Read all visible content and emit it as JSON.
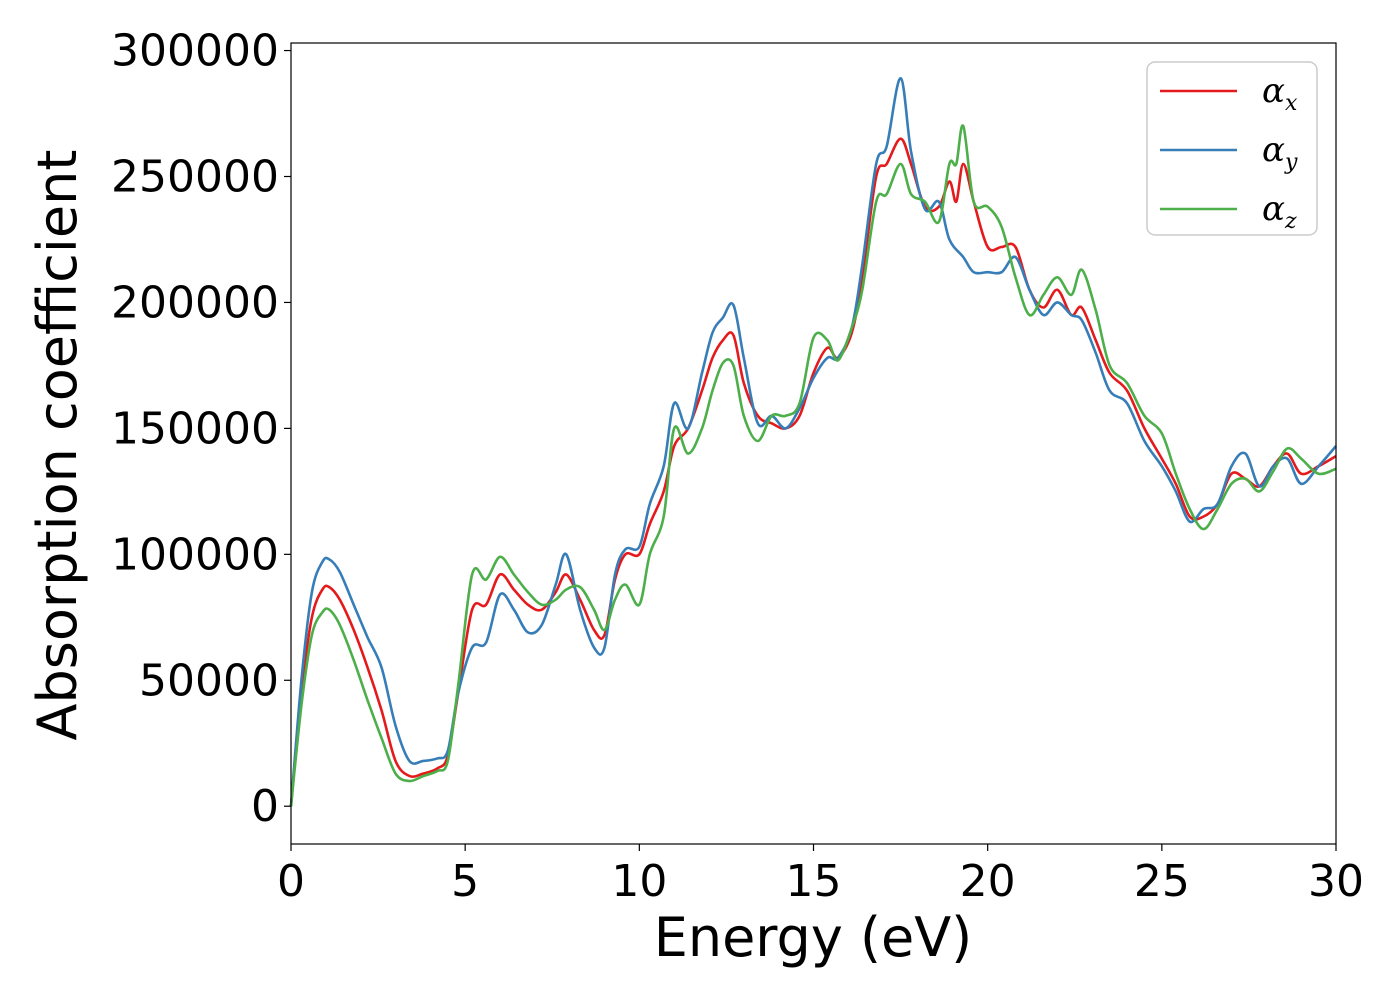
{
  "chart_data": {
    "type": "line",
    "xlabel": "Energy (eV)",
    "ylabel": "Absorption coefficient",
    "xlim": [
      0,
      30
    ],
    "ylim": [
      -15000,
      303000
    ],
    "x_ticks": [
      "0",
      "5",
      "10",
      "15",
      "20",
      "25",
      "30"
    ],
    "y_ticks": [
      "0",
      "50000",
      "100000",
      "150000",
      "200000",
      "250000",
      "300000"
    ],
    "grid": false,
    "legend_position": "top-right",
    "series": [
      {
        "name": "α",
        "subscript": "x",
        "color": "#e41a1c",
        "points": [
          [
            0,
            0
          ],
          [
            0.3,
            45000
          ],
          [
            0.6,
            75000
          ],
          [
            0.9,
            86000
          ],
          [
            1.1,
            87000
          ],
          [
            1.4,
            82000
          ],
          [
            1.8,
            70000
          ],
          [
            2.2,
            55000
          ],
          [
            2.6,
            38000
          ],
          [
            3.0,
            18000
          ],
          [
            3.4,
            12000
          ],
          [
            3.8,
            13000
          ],
          [
            4.2,
            15000
          ],
          [
            4.5,
            20000
          ],
          [
            4.8,
            45000
          ],
          [
            5.2,
            78000
          ],
          [
            5.6,
            80000
          ],
          [
            6.0,
            92000
          ],
          [
            6.4,
            86000
          ],
          [
            6.8,
            80000
          ],
          [
            7.2,
            78000
          ],
          [
            7.6,
            85000
          ],
          [
            7.9,
            92000
          ],
          [
            8.3,
            82000
          ],
          [
            8.7,
            70000
          ],
          [
            9.0,
            68000
          ],
          [
            9.3,
            90000
          ],
          [
            9.6,
            100000
          ],
          [
            10.0,
            100000
          ],
          [
            10.3,
            112000
          ],
          [
            10.7,
            125000
          ],
          [
            11.0,
            143000
          ],
          [
            11.4,
            150000
          ],
          [
            11.8,
            165000
          ],
          [
            12.1,
            178000
          ],
          [
            12.4,
            185000
          ],
          [
            12.7,
            187000
          ],
          [
            13.0,
            168000
          ],
          [
            13.4,
            155000
          ],
          [
            13.8,
            152000
          ],
          [
            14.2,
            150000
          ],
          [
            14.6,
            155000
          ],
          [
            15.0,
            172000
          ],
          [
            15.4,
            182000
          ],
          [
            15.7,
            178000
          ],
          [
            16.1,
            188000
          ],
          [
            16.4,
            210000
          ],
          [
            16.8,
            250000
          ],
          [
            17.1,
            255000
          ],
          [
            17.5,
            265000
          ],
          [
            17.8,
            255000
          ],
          [
            18.2,
            238000
          ],
          [
            18.6,
            238000
          ],
          [
            18.9,
            248000
          ],
          [
            19.1,
            240000
          ],
          [
            19.3,
            255000
          ],
          [
            19.6,
            240000
          ],
          [
            20.0,
            222000
          ],
          [
            20.4,
            222000
          ],
          [
            20.8,
            222000
          ],
          [
            21.2,
            205000
          ],
          [
            21.6,
            198000
          ],
          [
            22.0,
            205000
          ],
          [
            22.4,
            195000
          ],
          [
            22.7,
            198000
          ],
          [
            23.1,
            185000
          ],
          [
            23.5,
            172000
          ],
          [
            24.0,
            165000
          ],
          [
            24.5,
            150000
          ],
          [
            25.0,
            138000
          ],
          [
            25.4,
            128000
          ],
          [
            25.8,
            115000
          ],
          [
            26.2,
            115000
          ],
          [
            26.6,
            120000
          ],
          [
            27.0,
            132000
          ],
          [
            27.4,
            130000
          ],
          [
            27.8,
            127000
          ],
          [
            28.2,
            135000
          ],
          [
            28.6,
            140000
          ],
          [
            29.0,
            132000
          ],
          [
            29.5,
            135000
          ],
          [
            30.0,
            139000
          ]
        ]
      },
      {
        "name": "α",
        "subscript": "y",
        "color": "#377eb8",
        "points": [
          [
            0,
            0
          ],
          [
            0.3,
            50000
          ],
          [
            0.6,
            85000
          ],
          [
            0.9,
            97000
          ],
          [
            1.1,
            98000
          ],
          [
            1.4,
            93000
          ],
          [
            1.8,
            80000
          ],
          [
            2.2,
            67000
          ],
          [
            2.6,
            55000
          ],
          [
            3.0,
            32000
          ],
          [
            3.4,
            18000
          ],
          [
            3.8,
            18000
          ],
          [
            4.2,
            19000
          ],
          [
            4.5,
            22000
          ],
          [
            4.8,
            45000
          ],
          [
            5.2,
            63000
          ],
          [
            5.6,
            65000
          ],
          [
            6.0,
            84000
          ],
          [
            6.4,
            78000
          ],
          [
            6.8,
            69000
          ],
          [
            7.2,
            72000
          ],
          [
            7.6,
            88000
          ],
          [
            7.9,
            100000
          ],
          [
            8.3,
            78000
          ],
          [
            8.7,
            63000
          ],
          [
            9.0,
            63000
          ],
          [
            9.3,
            92000
          ],
          [
            9.6,
            102000
          ],
          [
            10.0,
            103000
          ],
          [
            10.3,
            120000
          ],
          [
            10.7,
            135000
          ],
          [
            11.0,
            160000
          ],
          [
            11.4,
            150000
          ],
          [
            11.8,
            172000
          ],
          [
            12.1,
            188000
          ],
          [
            12.4,
            194000
          ],
          [
            12.7,
            199000
          ],
          [
            13.0,
            178000
          ],
          [
            13.4,
            152000
          ],
          [
            13.8,
            155000
          ],
          [
            14.2,
            150000
          ],
          [
            14.6,
            158000
          ],
          [
            15.0,
            170000
          ],
          [
            15.4,
            178000
          ],
          [
            15.7,
            178000
          ],
          [
            16.1,
            190000
          ],
          [
            16.4,
            215000
          ],
          [
            16.8,
            255000
          ],
          [
            17.1,
            262000
          ],
          [
            17.5,
            289000
          ],
          [
            17.8,
            260000
          ],
          [
            18.2,
            237000
          ],
          [
            18.6,
            240000
          ],
          [
            18.9,
            225000
          ],
          [
            19.3,
            218000
          ],
          [
            19.6,
            212000
          ],
          [
            20.0,
            212000
          ],
          [
            20.4,
            212000
          ],
          [
            20.8,
            218000
          ],
          [
            21.2,
            205000
          ],
          [
            21.6,
            195000
          ],
          [
            22.0,
            200000
          ],
          [
            22.4,
            195000
          ],
          [
            22.7,
            193000
          ],
          [
            23.1,
            180000
          ],
          [
            23.5,
            165000
          ],
          [
            24.0,
            160000
          ],
          [
            24.5,
            145000
          ],
          [
            25.0,
            135000
          ],
          [
            25.4,
            125000
          ],
          [
            25.8,
            113000
          ],
          [
            26.2,
            118000
          ],
          [
            26.6,
            120000
          ],
          [
            27.0,
            135000
          ],
          [
            27.4,
            140000
          ],
          [
            27.8,
            127000
          ],
          [
            28.2,
            135000
          ],
          [
            28.6,
            138000
          ],
          [
            29.0,
            128000
          ],
          [
            29.5,
            135000
          ],
          [
            30.0,
            143000
          ]
        ]
      },
      {
        "name": "α",
        "subscript": "z",
        "color": "#4daf4a",
        "points": [
          [
            0,
            0
          ],
          [
            0.3,
            40000
          ],
          [
            0.6,
            68000
          ],
          [
            0.9,
            77000
          ],
          [
            1.1,
            78000
          ],
          [
            1.4,
            72000
          ],
          [
            1.8,
            58000
          ],
          [
            2.2,
            42000
          ],
          [
            2.6,
            27000
          ],
          [
            3.0,
            13000
          ],
          [
            3.4,
            10000
          ],
          [
            3.8,
            12000
          ],
          [
            4.2,
            14000
          ],
          [
            4.5,
            18000
          ],
          [
            4.8,
            48000
          ],
          [
            5.2,
            92000
          ],
          [
            5.6,
            90000
          ],
          [
            6.0,
            99000
          ],
          [
            6.4,
            92000
          ],
          [
            6.8,
            85000
          ],
          [
            7.2,
            80000
          ],
          [
            7.6,
            82000
          ],
          [
            7.9,
            86000
          ],
          [
            8.3,
            87000
          ],
          [
            8.7,
            78000
          ],
          [
            9.0,
            70000
          ],
          [
            9.3,
            82000
          ],
          [
            9.6,
            88000
          ],
          [
            10.0,
            80000
          ],
          [
            10.3,
            100000
          ],
          [
            10.7,
            115000
          ],
          [
            11.0,
            150000
          ],
          [
            11.4,
            140000
          ],
          [
            11.8,
            150000
          ],
          [
            12.1,
            165000
          ],
          [
            12.4,
            176000
          ],
          [
            12.7,
            175000
          ],
          [
            13.0,
            155000
          ],
          [
            13.4,
            145000
          ],
          [
            13.8,
            155000
          ],
          [
            14.2,
            155000
          ],
          [
            14.6,
            160000
          ],
          [
            15.0,
            186000
          ],
          [
            15.4,
            185000
          ],
          [
            15.7,
            177000
          ],
          [
            16.1,
            190000
          ],
          [
            16.4,
            205000
          ],
          [
            16.8,
            240000
          ],
          [
            17.1,
            243000
          ],
          [
            17.5,
            255000
          ],
          [
            17.8,
            243000
          ],
          [
            18.2,
            240000
          ],
          [
            18.6,
            232000
          ],
          [
            18.9,
            255000
          ],
          [
            19.1,
            255000
          ],
          [
            19.3,
            270000
          ],
          [
            19.6,
            240000
          ],
          [
            20.0,
            238000
          ],
          [
            20.4,
            230000
          ],
          [
            20.8,
            210000
          ],
          [
            21.2,
            195000
          ],
          [
            21.6,
            203000
          ],
          [
            22.0,
            210000
          ],
          [
            22.4,
            203000
          ],
          [
            22.7,
            213000
          ],
          [
            23.1,
            197000
          ],
          [
            23.5,
            175000
          ],
          [
            24.0,
            168000
          ],
          [
            24.5,
            155000
          ],
          [
            25.0,
            148000
          ],
          [
            25.4,
            132000
          ],
          [
            25.8,
            118000
          ],
          [
            26.2,
            110000
          ],
          [
            26.6,
            118000
          ],
          [
            27.0,
            128000
          ],
          [
            27.4,
            130000
          ],
          [
            27.8,
            125000
          ],
          [
            28.2,
            133000
          ],
          [
            28.6,
            142000
          ],
          [
            29.0,
            138000
          ],
          [
            29.5,
            132000
          ],
          [
            30.0,
            134000
          ]
        ]
      }
    ]
  }
}
